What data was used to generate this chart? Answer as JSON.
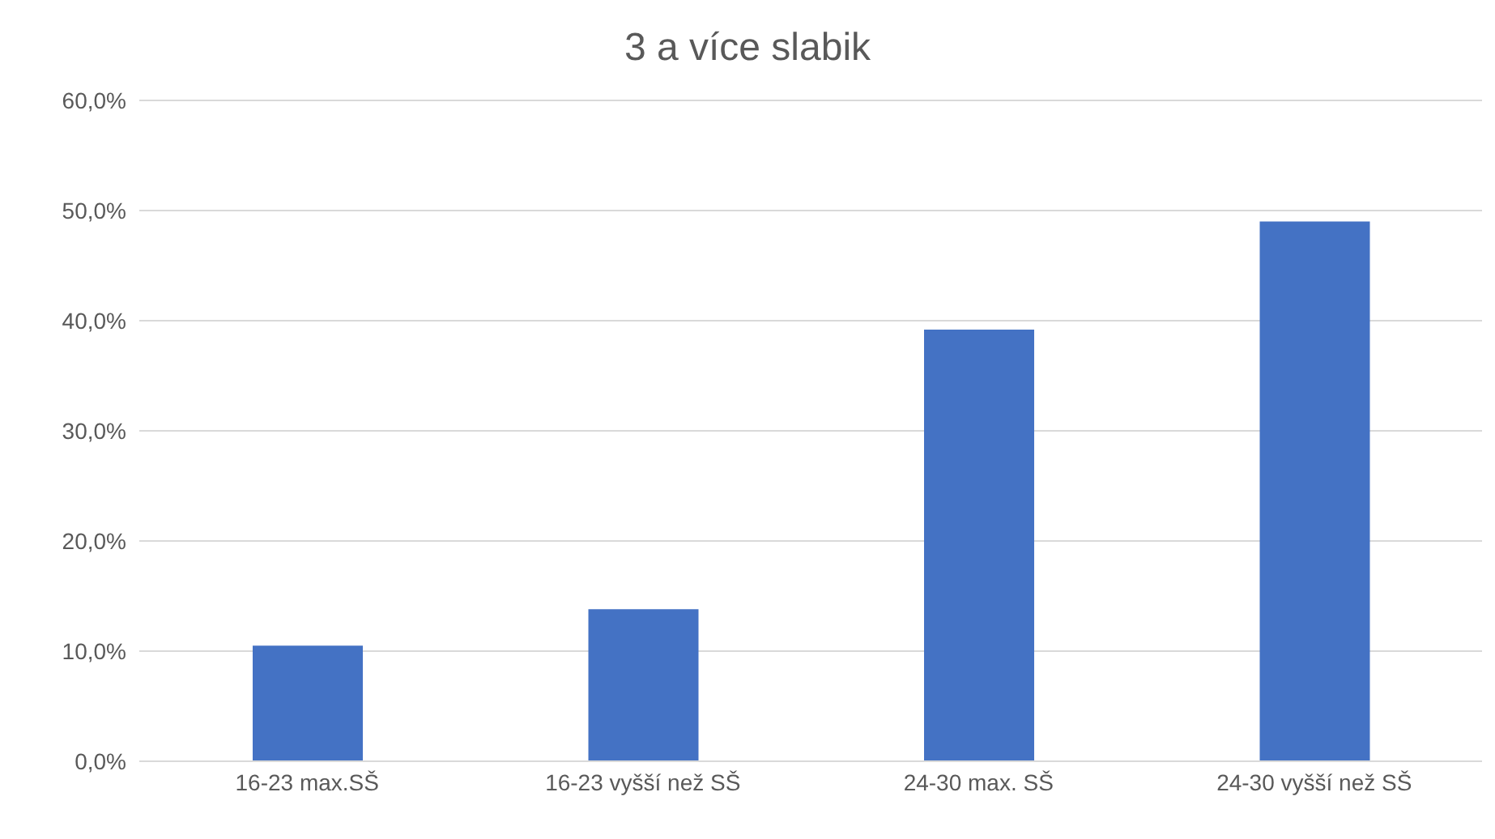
{
  "chart_data": {
    "type": "bar",
    "title": "3 a více slabik",
    "categories": [
      "16-23 max.SŠ",
      "16-23 vyšší než SŠ",
      "24-30 max. SŠ",
      "24-30 vyšší než SŠ"
    ],
    "values": [
      10.5,
      13.8,
      39.2,
      49.0
    ],
    "color": "#4472c4",
    "ylim": [
      0,
      60
    ],
    "yticks": [
      {
        "value": 0,
        "label": "0,0%"
      },
      {
        "value": 10,
        "label": "10,0%"
      },
      {
        "value": 20,
        "label": "20,0%"
      },
      {
        "value": 30,
        "label": "30,0%"
      },
      {
        "value": 40,
        "label": "40,0%"
      },
      {
        "value": 50,
        "label": "50,0%"
      },
      {
        "value": 60,
        "label": "60,0%"
      }
    ],
    "grid": "y"
  }
}
